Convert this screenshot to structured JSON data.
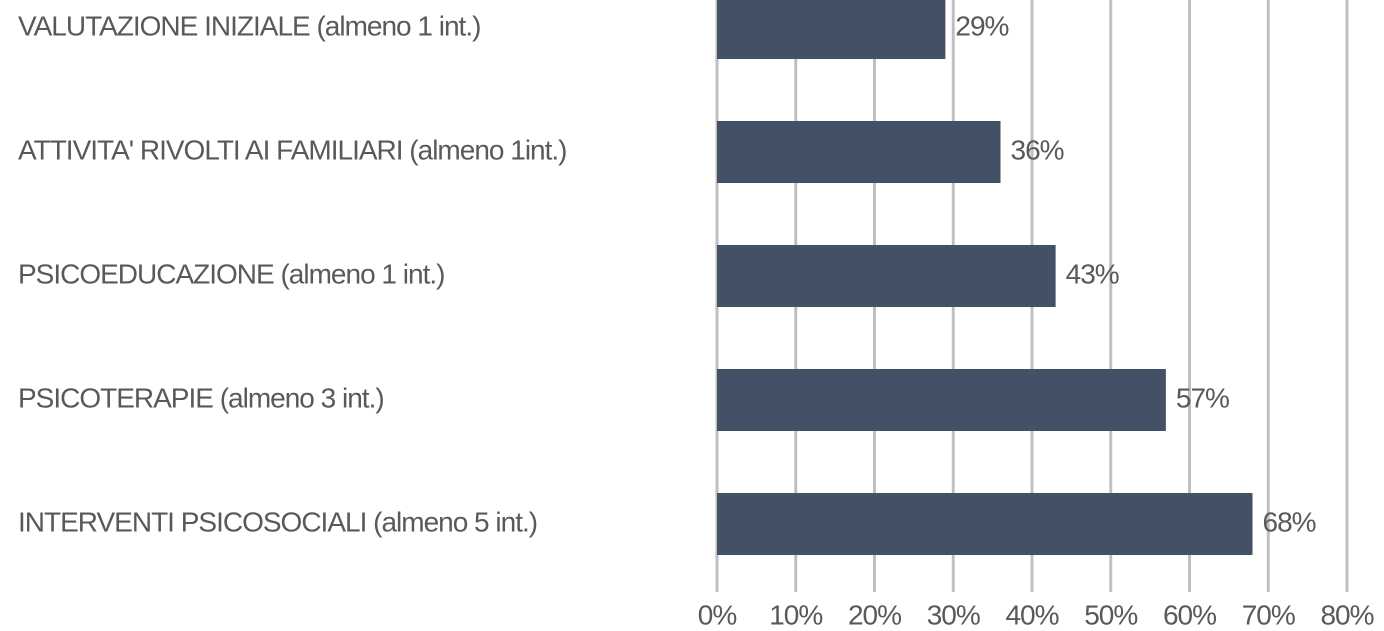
{
  "chart_data": {
    "type": "barh",
    "categories": [
      "VALUTAZIONE INIZIALE (almeno 1 int.)",
      "ATTIVITA' RIVOLTI AI FAMILIARI (almeno 1int.)",
      "PSICOEDUCAZIONE (almeno 1 int.)",
      "PSICOTERAPIE (almeno 3 int.)",
      "INTERVENTI PSICOSOCIALI (almeno 5 int.)"
    ],
    "values": [
      29,
      36,
      43,
      57,
      68
    ],
    "value_labels": [
      "29%",
      "36%",
      "43%",
      "57%",
      "68%"
    ],
    "color": "#435066",
    "xlim": [
      0,
      80
    ],
    "xticks": [
      {
        "value": 0,
        "label": "0%"
      },
      {
        "value": 10,
        "label": "10%"
      },
      {
        "value": 20,
        "label": "20%"
      },
      {
        "value": 30,
        "label": "30%"
      },
      {
        "value": 40,
        "label": "40%"
      },
      {
        "value": 50,
        "label": "50%"
      },
      {
        "value": 60,
        "label": "60%"
      },
      {
        "value": 70,
        "label": "70%"
      },
      {
        "value": 80,
        "label": "80%"
      }
    ],
    "grid": true
  }
}
